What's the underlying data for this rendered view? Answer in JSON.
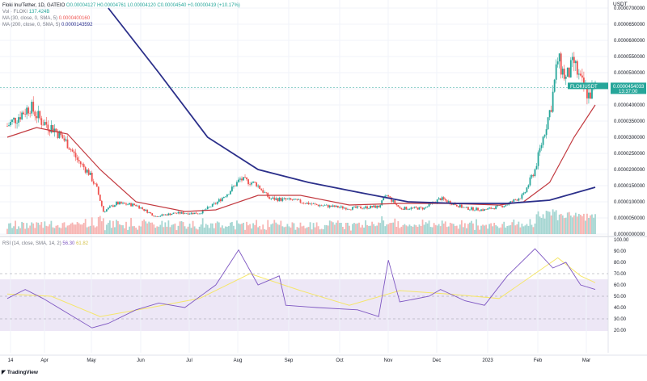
{
  "legend": {
    "symbol": "Floki Inu/Tether, 1D, GATEIO",
    "ohlc_text": "O0.00004127 H0.00004761 L0.00004120 C0.00004540 +0.00000419 (+10.17%)",
    "vol": {
      "label": "Vol · FLOKI",
      "value": "137.424B"
    },
    "ma30": {
      "label": "MA (30, close, 0, SMA, 5)",
      "value": "0.0000400160"
    },
    "ma200": {
      "label": "MA (200, close, 0, SMA, 5)",
      "value": "0.0000143592"
    },
    "rsi": {
      "label": "RSI (14, close, SMA, 14, 2)",
      "value": "56.30",
      "ma_value": "61.82"
    }
  },
  "currency": "USDT",
  "branding": "TradingView",
  "price_tag": {
    "symbol": "FLOKIUSDT",
    "price": "0.0000454033",
    "countdown": "13:37:00"
  },
  "colors": {
    "up": "#26a69a",
    "down": "#ef5350",
    "ma30": "#c2393f",
    "ma200": "#2b2f8a",
    "rsi": "#7e57c2",
    "rsi_ma": "#f5e66a",
    "rsi_band": "#ede7f6"
  },
  "chart_data": [
    {
      "type": "candlestick",
      "title": "Floki Inu/Tether, 1D, GATEIO",
      "x_tick_labels": [
        "14",
        "Apr",
        "May",
        "Jun",
        "Jul",
        "Aug",
        "Sep",
        "Oct",
        "Nov",
        "Dec",
        "2023",
        "Feb",
        "Mar"
      ],
      "y_tick_labels": [
        "0.0000700000",
        "0.0000650000",
        "0.0000600000",
        "0.0000550000",
        "0.0000500000",
        "0.0000450000",
        "0.0000400000",
        "0.0000350000",
        "0.0000300000",
        "0.0000250000",
        "0.0000200000",
        "0.0000150000",
        "0.0000100000",
        "0.0000050000",
        "0.0000000000"
      ],
      "ylim": [
        0,
        7e-05
      ],
      "close_path": [
        [
          "2022-03-14",
          3.35e-05
        ],
        [
          "2022-03-22",
          3.7e-05
        ],
        [
          "2022-03-28",
          3.95e-05
        ],
        [
          "2022-04-04",
          3.5e-05
        ],
        [
          "2022-04-12",
          3.25e-05
        ],
        [
          "2022-04-20",
          2.8e-05
        ],
        [
          "2022-04-26",
          2.3e-05
        ],
        [
          "2022-05-03",
          1.9e-05
        ],
        [
          "2022-05-08",
          1.4e-05
        ],
        [
          "2022-05-12",
          7e-06
        ],
        [
          "2022-05-20",
          9.5e-06
        ],
        [
          "2022-06-01",
          9e-06
        ],
        [
          "2022-06-13",
          5.5e-06
        ],
        [
          "2022-06-25",
          6.5e-06
        ],
        [
          "2022-07-10",
          6.5e-06
        ],
        [
          "2022-07-20",
          9.5e-06
        ],
        [
          "2022-07-28",
          1.3e-05
        ],
        [
          "2022-08-04",
          1.7e-05
        ],
        [
          "2022-08-14",
          1.55e-05
        ],
        [
          "2022-08-22",
          1.1e-05
        ],
        [
          "2022-09-05",
          1.05e-05
        ],
        [
          "2022-09-20",
          9e-06
        ],
        [
          "2022-10-10",
          8e-06
        ],
        [
          "2022-10-28",
          8.5e-06
        ],
        [
          "2022-11-02",
          1.2e-05
        ],
        [
          "2022-11-10",
          8e-06
        ],
        [
          "2022-11-25",
          8e-06
        ],
        [
          "2022-12-05",
          1.1e-05
        ],
        [
          "2022-12-20",
          8e-06
        ],
        [
          "2023-01-01",
          7.5e-06
        ],
        [
          "2023-01-14",
          9e-06
        ],
        [
          "2023-01-25",
          1.2e-05
        ],
        [
          "2023-02-01",
          2e-05
        ],
        [
          "2023-02-06",
          3e-05
        ],
        [
          "2023-02-11",
          4e-05
        ],
        [
          "2023-02-15",
          5.4e-05
        ],
        [
          "2023-02-20",
          4.8e-05
        ],
        [
          "2023-02-25",
          5.3e-05
        ],
        [
          "2023-03-01",
          4.7e-05
        ],
        [
          "2023-03-06",
          4.3e-05
        ],
        [
          "2023-03-10",
          4.54e-05
        ]
      ],
      "ma30_path": [
        [
          "2022-03-14",
          3e-05
        ],
        [
          "2022-04-01",
          3.3e-05
        ],
        [
          "2022-04-20",
          3.1e-05
        ],
        [
          "2022-05-10",
          2e-05
        ],
        [
          "2022-06-01",
          1e-05
        ],
        [
          "2022-07-01",
          7e-06
        ],
        [
          "2022-07-20",
          7.5e-06
        ],
        [
          "2022-08-15",
          1.2e-05
        ],
        [
          "2022-09-10",
          1.2e-05
        ],
        [
          "2022-10-10",
          9e-06
        ],
        [
          "2022-11-10",
          9.5e-06
        ],
        [
          "2022-12-10",
          9.5e-06
        ],
        [
          "2023-01-10",
          9e-06
        ],
        [
          "2023-01-25",
          1e-05
        ],
        [
          "2023-02-10",
          1.6e-05
        ],
        [
          "2023-02-25",
          3e-05
        ],
        [
          "2023-03-10",
          4e-05
        ]
      ],
      "ma200_path": [
        [
          "2022-05-15",
          7e-05
        ],
        [
          "2022-06-15",
          5e-05
        ],
        [
          "2022-07-15",
          3e-05
        ],
        [
          "2022-08-15",
          2e-05
        ],
        [
          "2022-09-15",
          1.6e-05
        ],
        [
          "2022-10-15",
          1.3e-05
        ],
        [
          "2022-11-15",
          1e-05
        ],
        [
          "2022-12-15",
          9.5e-06
        ],
        [
          "2023-01-15",
          9.5e-06
        ],
        [
          "2023-02-10",
          1.05e-05
        ],
        [
          "2023-03-10",
          1.45e-05
        ]
      ],
      "last_price": 4.54033e-05
    },
    {
      "type": "line",
      "title": "RSI (14, close, SMA, 14, 2)",
      "y_tick_labels": [
        "100.00",
        "90.00",
        "80.00",
        "70.00",
        "60.00",
        "50.00",
        "40.00",
        "30.00",
        "20.00"
      ],
      "ylim": [
        15,
        100
      ],
      "bands": [
        30,
        50,
        70
      ],
      "series": [
        {
          "name": "RSI",
          "values": [
            [
              "2022-03-14",
              48
            ],
            [
              "2022-03-25",
              56
            ],
            [
              "2022-04-05",
              48
            ],
            [
              "2022-04-20",
              35
            ],
            [
              "2022-05-05",
              22
            ],
            [
              "2022-05-15",
              26
            ],
            [
              "2022-06-01",
              38
            ],
            [
              "2022-06-15",
              44
            ],
            [
              "2022-07-01",
              40
            ],
            [
              "2022-07-20",
              60
            ],
            [
              "2022-08-03",
              91
            ],
            [
              "2022-08-15",
              60
            ],
            [
              "2022-08-28",
              68
            ],
            [
              "2022-09-01",
              42
            ],
            [
              "2022-09-20",
              40
            ],
            [
              "2022-10-15",
              38
            ],
            [
              "2022-10-28",
              32
            ],
            [
              "2022-11-03",
              82
            ],
            [
              "2022-11-10",
              45
            ],
            [
              "2022-11-28",
              50
            ],
            [
              "2022-12-05",
              56
            ],
            [
              "2022-12-20",
              46
            ],
            [
              "2023-01-01",
              42
            ],
            [
              "2023-01-15",
              68
            ],
            [
              "2023-02-01",
              92
            ],
            [
              "2023-02-12",
              75
            ],
            [
              "2023-02-20",
              80
            ],
            [
              "2023-03-01",
              60
            ],
            [
              "2023-03-10",
              56
            ]
          ]
        },
        {
          "name": "RSI-based MA",
          "values": [
            [
              "2022-03-14",
              52
            ],
            [
              "2022-04-10",
              50
            ],
            [
              "2022-05-10",
              32
            ],
            [
              "2022-06-10",
              40
            ],
            [
              "2022-07-10",
              48
            ],
            [
              "2022-08-10",
              70
            ],
            [
              "2022-09-10",
              55
            ],
            [
              "2022-10-10",
              42
            ],
            [
              "2022-11-10",
              55
            ],
            [
              "2022-12-10",
              52
            ],
            [
              "2023-01-10",
              48
            ],
            [
              "2023-02-01",
              70
            ],
            [
              "2023-02-15",
              84
            ],
            [
              "2023-03-01",
              68
            ],
            [
              "2023-03-10",
              62
            ]
          ]
        }
      ]
    }
  ]
}
